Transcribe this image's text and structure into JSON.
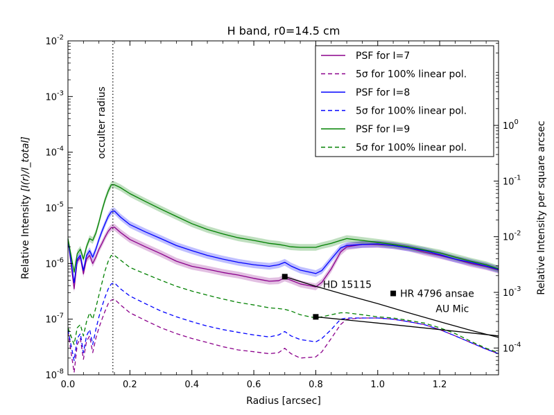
{
  "chart_data": {
    "type": "line",
    "title": "H band, r0=14.5 cm",
    "xlabel": "Radius [arcsec]",
    "ylabel_left_text": "Relative Intensity",
    "ylabel_left_math": "[I(r)/I_total]",
    "ylabel_right": "Relative Intensity per square arcsec",
    "xlim": [
      0.0,
      1.39
    ],
    "ylim": [
      1e-08,
      0.01
    ],
    "y2lim": [
      3.3e-05,
      33
    ],
    "yscale": "log",
    "grid": false,
    "legend_position": "top-right",
    "x_ticks": [
      {
        "value": 0.0,
        "label": "0.0"
      },
      {
        "value": 0.2,
        "label": "0.2"
      },
      {
        "value": 0.4,
        "label": "0.4"
      },
      {
        "value": 0.6,
        "label": "0.6"
      },
      {
        "value": 0.8,
        "label": "0.8"
      },
      {
        "value": 1.0,
        "label": "1.0"
      },
      {
        "value": 1.2,
        "label": "1.2"
      }
    ],
    "y_ticks": [
      {
        "value": 1e-08,
        "base": "10",
        "exp": "-8"
      },
      {
        "value": 1e-07,
        "base": "10",
        "exp": "-7"
      },
      {
        "value": 1e-06,
        "base": "10",
        "exp": "-6"
      },
      {
        "value": 1e-05,
        "base": "10",
        "exp": "-5"
      },
      {
        "value": 0.0001,
        "base": "10",
        "exp": "-4"
      },
      {
        "value": 0.001,
        "base": "10",
        "exp": "-3"
      },
      {
        "value": 0.01,
        "base": "10",
        "exp": "-2"
      }
    ],
    "y2_ticks": [
      {
        "value": 0.0001,
        "base": "10",
        "exp": "-4"
      },
      {
        "value": 0.001,
        "base": "10",
        "exp": "-3"
      },
      {
        "value": 0.01,
        "base": "10",
        "exp": "-2"
      },
      {
        "value": 0.1,
        "base": "10",
        "exp": "-1"
      },
      {
        "value": 1,
        "base": "10",
        "exp": "0"
      }
    ],
    "occulter": {
      "x": 0.145,
      "label": "occulter radius"
    },
    "legend": [
      {
        "label": "PSF for I=7",
        "color": "#8b008b",
        "dashed": false
      },
      {
        "label": "5σ for 100% linear pol.",
        "color": "#8b008b",
        "dashed": true
      },
      {
        "label": "PSF for I=8",
        "color": "#0000ff",
        "dashed": false
      },
      {
        "label": "5σ for 100% linear pol.",
        "color": "#0000ff",
        "dashed": true
      },
      {
        "label": "PSF for I=9",
        "color": "#008000",
        "dashed": false
      },
      {
        "label": "5σ for 100% linear pol.",
        "color": "#008000",
        "dashed": true
      }
    ],
    "x": [
      0.0,
      0.02,
      0.03,
      0.04,
      0.05,
      0.06,
      0.07,
      0.08,
      0.09,
      0.1,
      0.11,
      0.12,
      0.13,
      0.14,
      0.15,
      0.17,
      0.2,
      0.25,
      0.3,
      0.35,
      0.4,
      0.45,
      0.5,
      0.55,
      0.6,
      0.65,
      0.68,
      0.7,
      0.72,
      0.75,
      0.8,
      0.82,
      0.85,
      0.88,
      0.9,
      0.95,
      1.0,
      1.05,
      1.1,
      1.15,
      1.2,
      1.25,
      1.3,
      1.35,
      1.39
    ],
    "series": [
      {
        "name": "PSF for I=7",
        "color": "#8b008b",
        "dashed": false,
        "band": true,
        "values": [
          2.7e-06,
          3.5e-07,
          1.1e-06,
          1.3e-06,
          6.5e-07,
          1.2e-06,
          1.4e-06,
          1e-06,
          1.3e-06,
          1.8e-06,
          2.3e-06,
          3e-06,
          3.8e-06,
          4.4e-06,
          4.5e-06,
          3.6e-06,
          2.7e-06,
          2e-06,
          1.5e-06,
          1.1e-06,
          8.9e-07,
          7.9e-07,
          6.9e-07,
          6.2e-07,
          5.4e-07,
          4.8e-07,
          4.9e-07,
          5.5e-07,
          5e-07,
          4.3e-07,
          3.8e-07,
          4.6e-07,
          8e-07,
          1.6e-06,
          2e-06,
          2.2e-06,
          2.2e-06,
          2.1e-06,
          1.9e-06,
          1.6e-06,
          1.4e-06,
          1.2e-06,
          1e-06,
          8.8e-07,
          7.6e-07
        ]
      },
      {
        "name": "PSF for I=8",
        "color": "#0000ff",
        "dashed": false,
        "band": true,
        "values": [
          2.7e-06,
          4.5e-07,
          1.2e-06,
          1.4e-06,
          7.5e-07,
          1.4e-06,
          1.7e-06,
          1.3e-06,
          1.8e-06,
          2.7e-06,
          3.8e-06,
          5.2e-06,
          7e-06,
          8.5e-06,
          8.8e-06,
          6.8e-06,
          5e-06,
          3.7e-06,
          2.8e-06,
          2.1e-06,
          1.7e-06,
          1.4e-06,
          1.2e-06,
          1.05e-06,
          9.5e-07,
          8.9e-07,
          9.5e-07,
          1.05e-06,
          9e-07,
          7.6e-07,
          6.6e-07,
          7.5e-07,
          1.2e-06,
          1.9e-06,
          2.1e-06,
          2.2e-06,
          2.25e-06,
          2.1e-06,
          1.9e-06,
          1.7e-06,
          1.45e-06,
          1.2e-06,
          1.05e-06,
          9e-07,
          7.8e-07
        ]
      },
      {
        "name": "PSF for I=9",
        "color": "#008000",
        "dashed": false,
        "band": true,
        "values": [
          2.8e-06,
          7e-07,
          1.5e-06,
          1.8e-06,
          1.2e-06,
          2e-06,
          2.8e-06,
          2.6e-06,
          3.5e-06,
          5.5e-06,
          9e-06,
          1.4e-05,
          2e-05,
          2.6e-05,
          2.6e-05,
          2.3e-05,
          1.8e-05,
          1.3e-05,
          9.5e-06,
          7e-06,
          5.2e-06,
          4.1e-06,
          3.4e-06,
          2.9e-06,
          2.6e-06,
          2.3e-06,
          2.2e-06,
          2.1e-06,
          2e-06,
          1.95e-06,
          1.95e-06,
          2.1e-06,
          2.3e-06,
          2.6e-06,
          2.8e-06,
          2.6e-06,
          2.4e-06,
          2.2e-06,
          2e-06,
          1.75e-06,
          1.55e-06,
          1.3e-06,
          1.1e-06,
          9.5e-07,
          8e-07
        ]
      },
      {
        "name": "5σ for 100% linear pol.",
        "color": "#8b008b",
        "dashed": true,
        "band": false,
        "values": [
          6e-08,
          1.1e-08,
          3.5e-08,
          4.5e-08,
          1.9e-08,
          4e-08,
          5e-08,
          2.5e-08,
          4.5e-08,
          7e-08,
          1e-07,
          1.4e-07,
          1.9e-07,
          2.2e-07,
          2.3e-07,
          1.8e-07,
          1.3e-07,
          9.5e-08,
          7e-08,
          5.5e-08,
          4.5e-08,
          3.8e-08,
          3.2e-08,
          2.8e-08,
          2.6e-08,
          2.4e-08,
          2.5e-08,
          3e-08,
          2.4e-08,
          2e-08,
          2.1e-08,
          2.6e-08,
          4.5e-08,
          8e-08,
          1e-07,
          1.05e-07,
          1.05e-07,
          1e-07,
          9e-08,
          8e-08,
          6.5e-08,
          5e-08,
          3.8e-08,
          2.9e-08,
          2.4e-08
        ]
      },
      {
        "name": "5σ for 100% linear pol.",
        "color": "#0000ff",
        "dashed": true,
        "band": false,
        "values": [
          6.5e-08,
          1.8e-08,
          4.5e-08,
          5.5e-08,
          2.5e-08,
          5e-08,
          6.5e-08,
          3.5e-08,
          6.5e-08,
          1.1e-07,
          1.7e-07,
          2.5e-07,
          3.5e-07,
          4.3e-07,
          4.5e-07,
          3.5e-07,
          2.6e-07,
          1.9e-07,
          1.4e-07,
          1.1e-07,
          9e-08,
          7.5e-08,
          6.5e-08,
          5.8e-08,
          5.2e-08,
          4.8e-08,
          5.2e-08,
          6e-08,
          5e-08,
          4.3e-08,
          3.9e-08,
          4.5e-08,
          6.5e-08,
          1e-07,
          1.05e-07,
          1.05e-07,
          1.05e-07,
          1e-07,
          9e-08,
          8e-08,
          6.5e-08,
          5e-08,
          3.8e-08,
          2.9e-08,
          2.4e-08
        ]
      },
      {
        "name": "5σ for 100% linear pol.",
        "color": "#008000",
        "dashed": true,
        "band": false,
        "values": [
          7e-08,
          3.5e-08,
          7e-08,
          8e-08,
          5e-08,
          9e-08,
          1.3e-07,
          1e-07,
          1.6e-07,
          2.7e-07,
          4.5e-07,
          7.5e-07,
          1.1e-06,
          1.4e-06,
          1.4e-06,
          1.15e-06,
          8.5e-07,
          6.5e-07,
          5e-07,
          3.9e-07,
          3.2e-07,
          2.7e-07,
          2.3e-07,
          2e-07,
          1.8e-07,
          1.6e-07,
          1.55e-07,
          1.5e-07,
          1.4e-07,
          1.2e-07,
          1.05e-07,
          1.1e-07,
          1.2e-07,
          1.3e-07,
          1.3e-07,
          1.2e-07,
          1.1e-07,
          1.05e-07,
          9.5e-08,
          8.5e-08,
          7e-08,
          5.5e-08,
          4e-08,
          3e-08,
          2.5e-08
        ]
      }
    ],
    "reference_curves": [
      {
        "name": "HD 15115",
        "x": [
          0.7,
          0.8,
          0.9,
          1.0,
          1.1,
          1.2,
          1.3,
          1.39
        ],
        "y": [
          5.8e-07,
          3.9e-07,
          2.7e-07,
          1.9e-07,
          1.3e-07,
          9e-08,
          6.3e-08,
          4.7e-08
        ]
      },
      {
        "name": "AU Mic",
        "x": [
          0.8,
          1.0,
          1.2,
          1.39
        ],
        "y": [
          1.1e-07,
          8.5e-08,
          6.5e-08,
          5e-08
        ]
      }
    ],
    "markers": [
      {
        "name": "HD 15115",
        "x": 0.7,
        "y": 5.8e-07,
        "label": "HD 15115"
      },
      {
        "name": "HR 4796 ansae",
        "x": 1.05,
        "y": 2.9e-07,
        "label": "HR 4796 ansae"
      },
      {
        "name": "AU Mic",
        "x": 0.8,
        "y": 1.1e-07,
        "label": "AU Mic"
      }
    ]
  }
}
